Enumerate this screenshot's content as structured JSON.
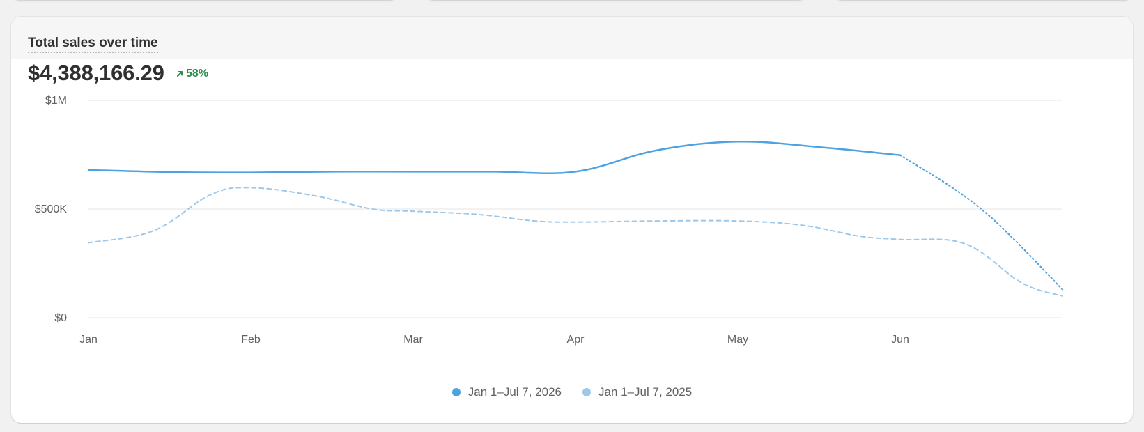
{
  "card": {
    "title": "Total sales over time",
    "total": "$4,388,166.29",
    "change": "58%",
    "change_direction": "up",
    "change_color": "#2e8b4f"
  },
  "chart_data": {
    "type": "line",
    "title": "Total sales over time",
    "xlabel": "",
    "ylabel": "",
    "categories": [
      "Jan",
      "Feb",
      "Mar",
      "Apr",
      "May",
      "Jun"
    ],
    "y_ticks": [
      "$0",
      "$500K",
      "$1M"
    ],
    "ylim": [
      0,
      1000000
    ],
    "grid": true,
    "legend_position": "bottom-center",
    "series": [
      {
        "name": "Jan 1–Jul 7, 2026",
        "color": "#4ba3e3",
        "style": "solid",
        "projected_style": "dotted",
        "x": [
          0,
          0.5,
          1,
          1.5,
          2,
          2.5,
          3,
          3.5,
          4,
          4.5,
          5,
          5.5,
          6
        ],
        "values": [
          680000,
          670000,
          668000,
          672000,
          672000,
          672000,
          672000,
          770000,
          810000,
          785000,
          748000,
          500000,
          130000
        ],
        "solid_until_x": 5
      },
      {
        "name": "Jan 1–Jul 7, 2025",
        "color": "#9ec8ea",
        "style": "dashed",
        "x": [
          0,
          0.4,
          0.75,
          1,
          1.4,
          1.75,
          2,
          2.4,
          2.75,
          3,
          3.5,
          4,
          4.4,
          4.75,
          5,
          5.4,
          5.75,
          6
        ],
        "values": [
          345000,
          400000,
          565000,
          598000,
          560000,
          500000,
          490000,
          475000,
          445000,
          440000,
          445000,
          445000,
          425000,
          375000,
          360000,
          340000,
          160000,
          100000
        ]
      }
    ]
  }
}
